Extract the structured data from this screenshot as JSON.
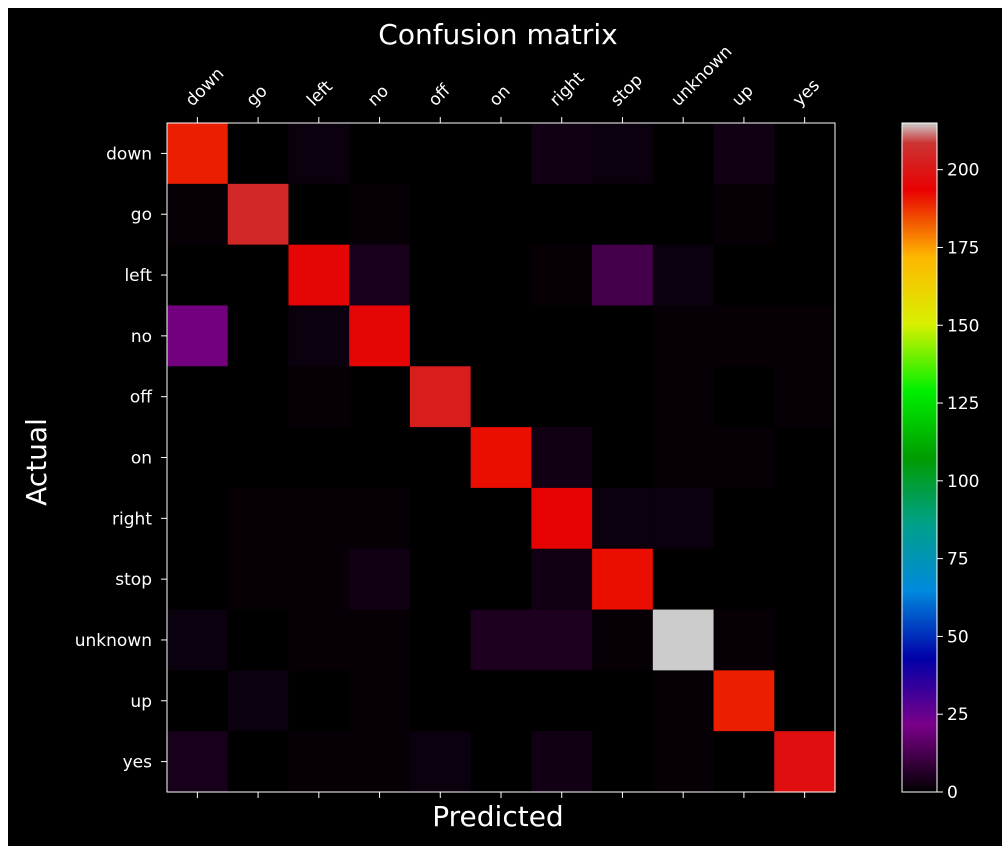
{
  "chart_data": {
    "type": "heatmap",
    "title": "Confusion matrix",
    "xlabel": "Predicted",
    "ylabel": "Actual",
    "x_categories": [
      "down",
      "go",
      "left",
      "no",
      "off",
      "on",
      "right",
      "stop",
      "unknown",
      "up",
      "yes"
    ],
    "y_categories": [
      "down",
      "go",
      "left",
      "no",
      "off",
      "on",
      "right",
      "stop",
      "unknown",
      "up",
      "yes"
    ],
    "values": [
      [
        190,
        0,
        2,
        0,
        0,
        0,
        3,
        2,
        0,
        3,
        0
      ],
      [
        1,
        205,
        0,
        1,
        0,
        0,
        0,
        0,
        0,
        1,
        0
      ],
      [
        0,
        0,
        195,
        4,
        0,
        0,
        1,
        12,
        2,
        0,
        0
      ],
      [
        20,
        0,
        2,
        195,
        0,
        0,
        0,
        0,
        1,
        1,
        1
      ],
      [
        0,
        0,
        1,
        0,
        202,
        0,
        0,
        0,
        1,
        0,
        1
      ],
      [
        0,
        0,
        0,
        0,
        0,
        192,
        3,
        0,
        1,
        1,
        0
      ],
      [
        0,
        1,
        1,
        1,
        0,
        0,
        194,
        2,
        2,
        0,
        0
      ],
      [
        0,
        1,
        1,
        3,
        0,
        0,
        3,
        192,
        0,
        0,
        0
      ],
      [
        2,
        0,
        1,
        1,
        0,
        5,
        5,
        1,
        215,
        1,
        0
      ],
      [
        0,
        2,
        0,
        1,
        0,
        0,
        0,
        0,
        1,
        190,
        0
      ],
      [
        4,
        0,
        1,
        1,
        2,
        0,
        3,
        0,
        1,
        0,
        198
      ]
    ],
    "colorbar": {
      "colormap": "nipy_spectral",
      "range": [
        0,
        215
      ],
      "ticks": [
        0,
        25,
        50,
        75,
        100,
        125,
        150,
        175,
        200
      ]
    },
    "grid": false,
    "background": "#000000"
  }
}
